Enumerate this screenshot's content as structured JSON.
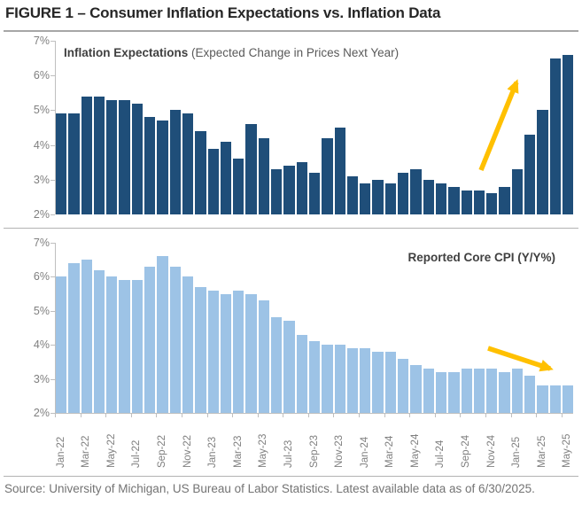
{
  "title": "FIGURE 1 – Consumer Inflation Expectations vs. Inflation Data",
  "source_note": "Source: University of Michigan, US Bureau of Labor Statistics. Latest available data as of 6/30/2025.",
  "colors": {
    "expectations_bar": "#1F4E79",
    "cpi_bar": "#9DC3E6",
    "arrow": "#FFC000",
    "axis_text": "#7F7F7F",
    "divider": "#A6A6A6"
  },
  "x_axis": {
    "tick_labels": [
      "Jan-22",
      "Mar-22",
      "May-22",
      "Jul-22",
      "Sep-22",
      "Nov-22",
      "Jan-23",
      "Mar-23",
      "May-23",
      "Jul-23",
      "Sep-23",
      "Nov-23",
      "Jan-24",
      "Mar-24",
      "May-24",
      "Jul-24",
      "Sep-24",
      "Nov-24",
      "Jan-25",
      "Mar-25",
      "May-25"
    ]
  },
  "chart_data": [
    {
      "type": "bar",
      "title_bold": "Inflation Expectations",
      "title_note": " (Expected Change in Prices Next Year)",
      "ylim": [
        2,
        7
      ],
      "yticks": [
        "7%",
        "6%",
        "5%",
        "4%",
        "3%",
        "2%"
      ],
      "grid": false,
      "legend_position": "none",
      "annotation": "rising-trend-arrow",
      "categories": [
        "Jan-22",
        "Feb-22",
        "Mar-22",
        "Apr-22",
        "May-22",
        "Jun-22",
        "Jul-22",
        "Aug-22",
        "Sep-22",
        "Oct-22",
        "Nov-22",
        "Dec-22",
        "Jan-23",
        "Feb-23",
        "Mar-23",
        "Apr-23",
        "May-23",
        "Jun-23",
        "Jul-23",
        "Aug-23",
        "Sep-23",
        "Oct-23",
        "Nov-23",
        "Dec-23",
        "Jan-24",
        "Feb-24",
        "Mar-24",
        "Apr-24",
        "May-24",
        "Jun-24",
        "Jul-24",
        "Aug-24",
        "Sep-24",
        "Oct-24",
        "Nov-24",
        "Dec-24",
        "Jan-25",
        "Feb-25",
        "Mar-25",
        "Apr-25",
        "May-25"
      ],
      "values": [
        4.9,
        4.9,
        5.4,
        5.4,
        5.3,
        5.3,
        5.2,
        4.8,
        4.7,
        5.0,
        4.9,
        4.4,
        3.9,
        4.1,
        3.6,
        4.6,
        4.2,
        3.3,
        3.4,
        3.5,
        3.2,
        4.2,
        4.5,
        3.1,
        2.9,
        3.0,
        2.9,
        3.2,
        3.3,
        3.0,
        2.9,
        2.8,
        2.7,
        2.7,
        2.6,
        2.8,
        3.3,
        4.3,
        5.0,
        6.5,
        6.6
      ]
    },
    {
      "type": "bar",
      "title_bold": "Reported Core CPI (Y/Y%)",
      "title_note": "",
      "ylim": [
        2,
        7
      ],
      "yticks": [
        "7%",
        "6%",
        "5%",
        "4%",
        "3%",
        "2%"
      ],
      "grid": false,
      "legend_position": "none",
      "annotation": "falling-trend-arrow",
      "categories": [
        "Jan-22",
        "Feb-22",
        "Mar-22",
        "Apr-22",
        "May-22",
        "Jun-22",
        "Jul-22",
        "Aug-22",
        "Sep-22",
        "Oct-22",
        "Nov-22",
        "Dec-22",
        "Jan-23",
        "Feb-23",
        "Mar-23",
        "Apr-23",
        "May-23",
        "Jun-23",
        "Jul-23",
        "Aug-23",
        "Sep-23",
        "Oct-23",
        "Nov-23",
        "Dec-23",
        "Jan-24",
        "Feb-24",
        "Mar-24",
        "Apr-24",
        "May-24",
        "Jun-24",
        "Jul-24",
        "Aug-24",
        "Sep-24",
        "Oct-24",
        "Nov-24",
        "Dec-24",
        "Jan-25",
        "Feb-25",
        "Mar-25",
        "Apr-25",
        "May-25"
      ],
      "values": [
        6.0,
        6.4,
        6.5,
        6.2,
        6.0,
        5.9,
        5.9,
        6.3,
        6.6,
        6.3,
        6.0,
        5.7,
        5.6,
        5.5,
        5.6,
        5.5,
        5.3,
        4.8,
        4.7,
        4.3,
        4.1,
        4.0,
        4.0,
        3.9,
        3.9,
        3.8,
        3.8,
        3.6,
        3.4,
        3.3,
        3.2,
        3.2,
        3.3,
        3.3,
        3.3,
        3.2,
        3.3,
        3.1,
        2.8,
        2.8,
        2.8
      ]
    }
  ]
}
